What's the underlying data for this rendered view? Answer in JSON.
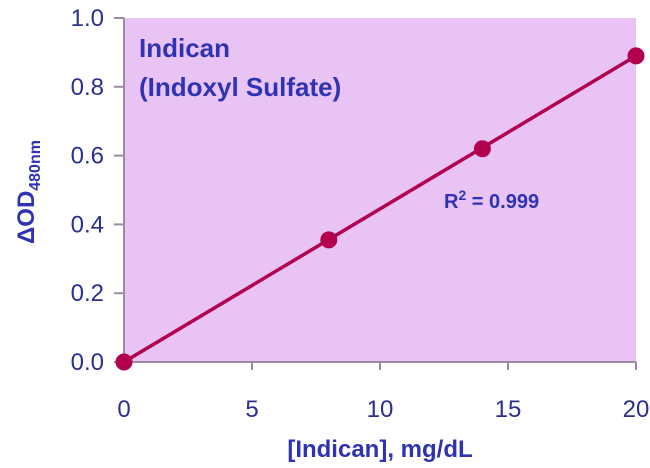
{
  "chart_data": {
    "type": "line",
    "title_lines": [
      "Indican",
      "(Indoxyl Sulfate)"
    ],
    "xlabel": "[Indican], mg/dL",
    "ylabel": {
      "main": "ΔOD",
      "sub": "480nm"
    },
    "xlim": [
      0,
      20
    ],
    "ylim": [
      0,
      1.0
    ],
    "x_ticks": [
      0,
      5,
      10,
      15,
      20
    ],
    "x_tick_labels": [
      "0",
      "5",
      "10",
      "15",
      "20"
    ],
    "y_ticks": [
      0,
      0.2,
      0.4,
      0.6,
      0.8,
      1.0
    ],
    "y_tick_labels": [
      "0.0",
      "0.2",
      "0.4",
      "0.6",
      "0.8",
      "1.0"
    ],
    "points": [
      {
        "x": 0,
        "y": 0.0
      },
      {
        "x": 8,
        "y": 0.355
      },
      {
        "x": 14,
        "y": 0.62
      },
      {
        "x": 20,
        "y": 0.89
      }
    ],
    "fit_line": {
      "from": {
        "x": 0,
        "y": 0.0
      },
      "to": {
        "x": 20,
        "y": 0.89
      }
    },
    "annotation": {
      "prefix": "R",
      "sup": "2",
      "suffix": " = 0.999"
    },
    "colors": {
      "plot_background": "#e8c3f3",
      "series": "#b2004f",
      "text": "#2f33b3",
      "axis": "#9a8aa2"
    },
    "grid": false,
    "legend": "none"
  }
}
